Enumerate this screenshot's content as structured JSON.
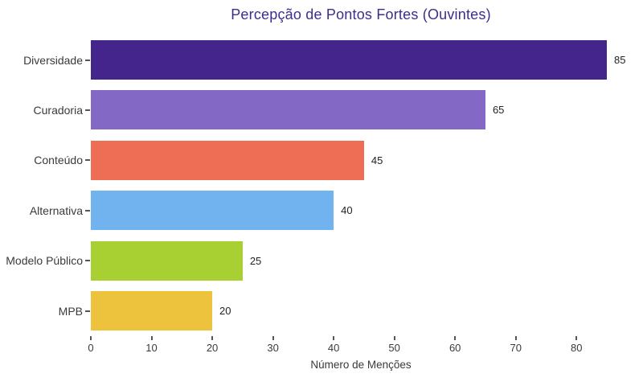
{
  "title": "Percepção de Pontos Fortes (Ouvintes)",
  "chart_data": {
    "type": "bar",
    "orientation": "horizontal",
    "title": "Percepção de Pontos Fortes (Ouvintes)",
    "categories": [
      "Diversidade",
      "Curadoria",
      "Conteúdo",
      "Alternativa",
      "Modelo Público",
      "MPB"
    ],
    "values": [
      85,
      65,
      45,
      40,
      25,
      20
    ],
    "value_labels": [
      "85",
      "65",
      "45",
      "40",
      "25",
      "20"
    ],
    "bar_colors": [
      "#44258B",
      "#8368C6",
      "#EE6E55",
      "#70B3EE",
      "#A9D032",
      "#EDC23C"
    ],
    "xlabel": "Número de Menções",
    "ylabel": "",
    "xlim": [
      0,
      88
    ],
    "xticks": [
      0,
      10,
      20,
      30,
      40,
      50,
      60,
      70,
      80
    ],
    "grid": false,
    "legend": null,
    "title_color": "#3B2E91",
    "tick_color": "#3A3A3A",
    "background_color": "#FFFFFF"
  }
}
